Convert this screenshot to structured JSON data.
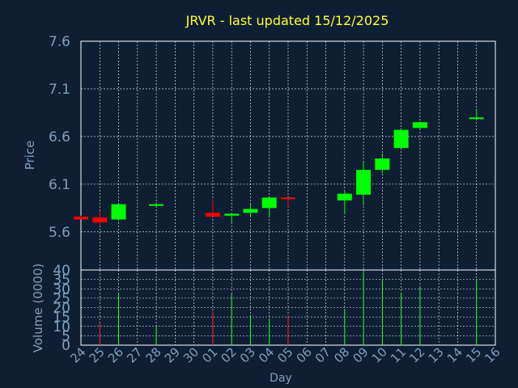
{
  "chart_data": {
    "type": "candlestick",
    "title": "JRVR - last updated 15/12/2025",
    "xlabel": "Day",
    "x_ticks": [
      "24",
      "25",
      "26",
      "27",
      "28",
      "29",
      "30",
      "01",
      "02",
      "03",
      "04",
      "05",
      "06",
      "07",
      "08",
      "09",
      "10",
      "11",
      "12",
      "13",
      "14",
      "15",
      "16"
    ],
    "price": {
      "ylabel": "Price",
      "ylim": [
        5.2,
        7.6
      ],
      "y_ticks": [
        "7.6",
        "7.1",
        "6.6",
        "6.1",
        "5.6"
      ],
      "candles": [
        {
          "x": "24",
          "open": 5.76,
          "high": 5.77,
          "low": 5.73,
          "close": 5.73
        },
        {
          "x": "25",
          "open": 5.75,
          "high": 5.82,
          "low": 5.67,
          "close": 5.7
        },
        {
          "x": "26",
          "open": 5.73,
          "high": 5.89,
          "low": 5.72,
          "close": 5.89
        },
        {
          "x": "28",
          "open": 5.88,
          "high": 5.91,
          "low": 5.87,
          "close": 5.89
        },
        {
          "x": "01",
          "open": 5.8,
          "high": 5.94,
          "low": 5.76,
          "close": 5.76
        },
        {
          "x": "02",
          "open": 5.77,
          "high": 5.8,
          "low": 5.7,
          "close": 5.79
        },
        {
          "x": "03",
          "open": 5.8,
          "high": 5.89,
          "low": 5.76,
          "close": 5.84
        },
        {
          "x": "04",
          "open": 5.85,
          "high": 5.96,
          "low": 5.76,
          "close": 5.96
        },
        {
          "x": "05",
          "open": 5.96,
          "high": 5.96,
          "low": 5.86,
          "close": 5.95
        },
        {
          "x": "08",
          "open": 5.93,
          "high": 6.02,
          "low": 5.79,
          "close": 6.0
        },
        {
          "x": "09",
          "open": 5.99,
          "high": 6.33,
          "low": 5.88,
          "close": 6.25
        },
        {
          "x": "10",
          "open": 6.25,
          "high": 6.42,
          "low": 6.22,
          "close": 6.37
        },
        {
          "x": "11",
          "open": 6.48,
          "high": 6.69,
          "low": 6.46,
          "close": 6.67
        },
        {
          "x": "12",
          "open": 6.69,
          "high": 6.76,
          "low": 6.68,
          "close": 6.75
        },
        {
          "x": "15",
          "open": 6.79,
          "high": 6.89,
          "low": 6.78,
          "close": 6.8
        }
      ]
    },
    "volume": {
      "ylabel": "Volume (0000)",
      "ylim": [
        0,
        40
      ],
      "y_ticks": [
        "40",
        "35",
        "30",
        "25",
        "20",
        "15",
        "10",
        "5",
        "0"
      ],
      "bars": [
        {
          "x": "25",
          "value": 12,
          "color": "#ff2222"
        },
        {
          "x": "26",
          "value": 28,
          "color": "#22ff22"
        },
        {
          "x": "28",
          "value": 10,
          "color": "#22ff22"
        },
        {
          "x": "01",
          "value": 18,
          "color": "#ff2222"
        },
        {
          "x": "02",
          "value": 27,
          "color": "#22ff22"
        },
        {
          "x": "03",
          "value": 16,
          "color": "#22ff22"
        },
        {
          "x": "04",
          "value": 14,
          "color": "#22ff22"
        },
        {
          "x": "05",
          "value": 16,
          "color": "#ff2222"
        },
        {
          "x": "08",
          "value": 19,
          "color": "#22ff22"
        },
        {
          "x": "09",
          "value": 39,
          "color": "#22ff22"
        },
        {
          "x": "10",
          "value": 35,
          "color": "#22ff22"
        },
        {
          "x": "11",
          "value": 28,
          "color": "#22ff22"
        },
        {
          "x": "12",
          "value": 31,
          "color": "#22ff22"
        },
        {
          "x": "15",
          "value": 35,
          "color": "#22ff22"
        }
      ]
    },
    "colors": {
      "background": "#0f1f33",
      "up": "#00ff00",
      "down": "#ff0000",
      "grid": "#ffffff",
      "axis_text": "#7f9fc0",
      "title": "#ffff33"
    },
    "grid": true
  }
}
